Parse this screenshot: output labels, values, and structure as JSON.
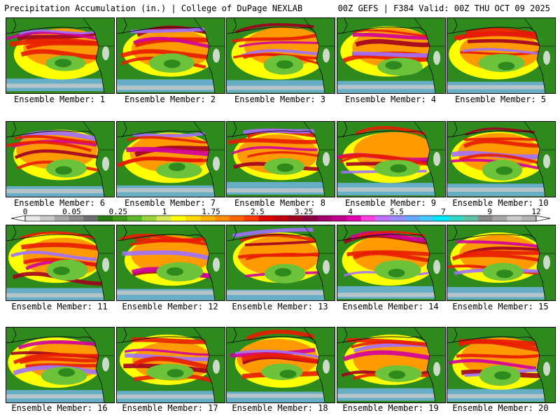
{
  "header": {
    "title": "Precipitation Accumulation (in.) | College of DuPage NEXLAB",
    "run_info": "00Z GEFS | F384 Valid: 00Z THU OCT 09 2025"
  },
  "caption_prefix": "Ensemble Member: ",
  "members": [
    "1",
    "2",
    "3",
    "4",
    "5",
    "6",
    "7",
    "8",
    "9",
    "10",
    "11",
    "12",
    "13",
    "14",
    "15",
    "16",
    "17",
    "18",
    "19",
    "20"
  ],
  "legend": {
    "unit": "in.",
    "labels": [
      "0",
      "0.05",
      "0.25",
      "1",
      "1.75",
      "2.5",
      "3.25",
      "4",
      "5.5",
      "7",
      "9",
      "12"
    ],
    "colors": [
      "#e8e8e8",
      "#c9c9c9",
      "#a8a8a8",
      "#8c8c8c",
      "#6f6f6f",
      "#2a7a14",
      "#3f9a1a",
      "#5cb82a",
      "#9ad33a",
      "#d8e85a",
      "#ffff00",
      "#ffd800",
      "#ffb000",
      "#ff8c00",
      "#ff6400",
      "#ff3c00",
      "#e00000",
      "#c00010",
      "#a00020",
      "#8a0040",
      "#a0006a",
      "#c0008a",
      "#e000b0",
      "#ff40e0",
      "#c070ff",
      "#9a8cff",
      "#6aa8ff",
      "#40c8ff",
      "#00e8ff",
      "#30d8c8",
      "#60c0a8",
      "#8c8c8c",
      "#a8a8a8",
      "#c9c9c9",
      "#b4b4b4"
    ]
  },
  "map_colors": {
    "land": "#2f8a1d",
    "light_green": "#6cc33a",
    "yellow": "#ffff00",
    "orange": "#ff9a00",
    "red": "#e81c00",
    "dark_red": "#a00020",
    "magenta": "#d000a0",
    "purple": "#a070ff",
    "light_blue": "#7ab8ff",
    "gray": "#c9c9c9"
  }
}
